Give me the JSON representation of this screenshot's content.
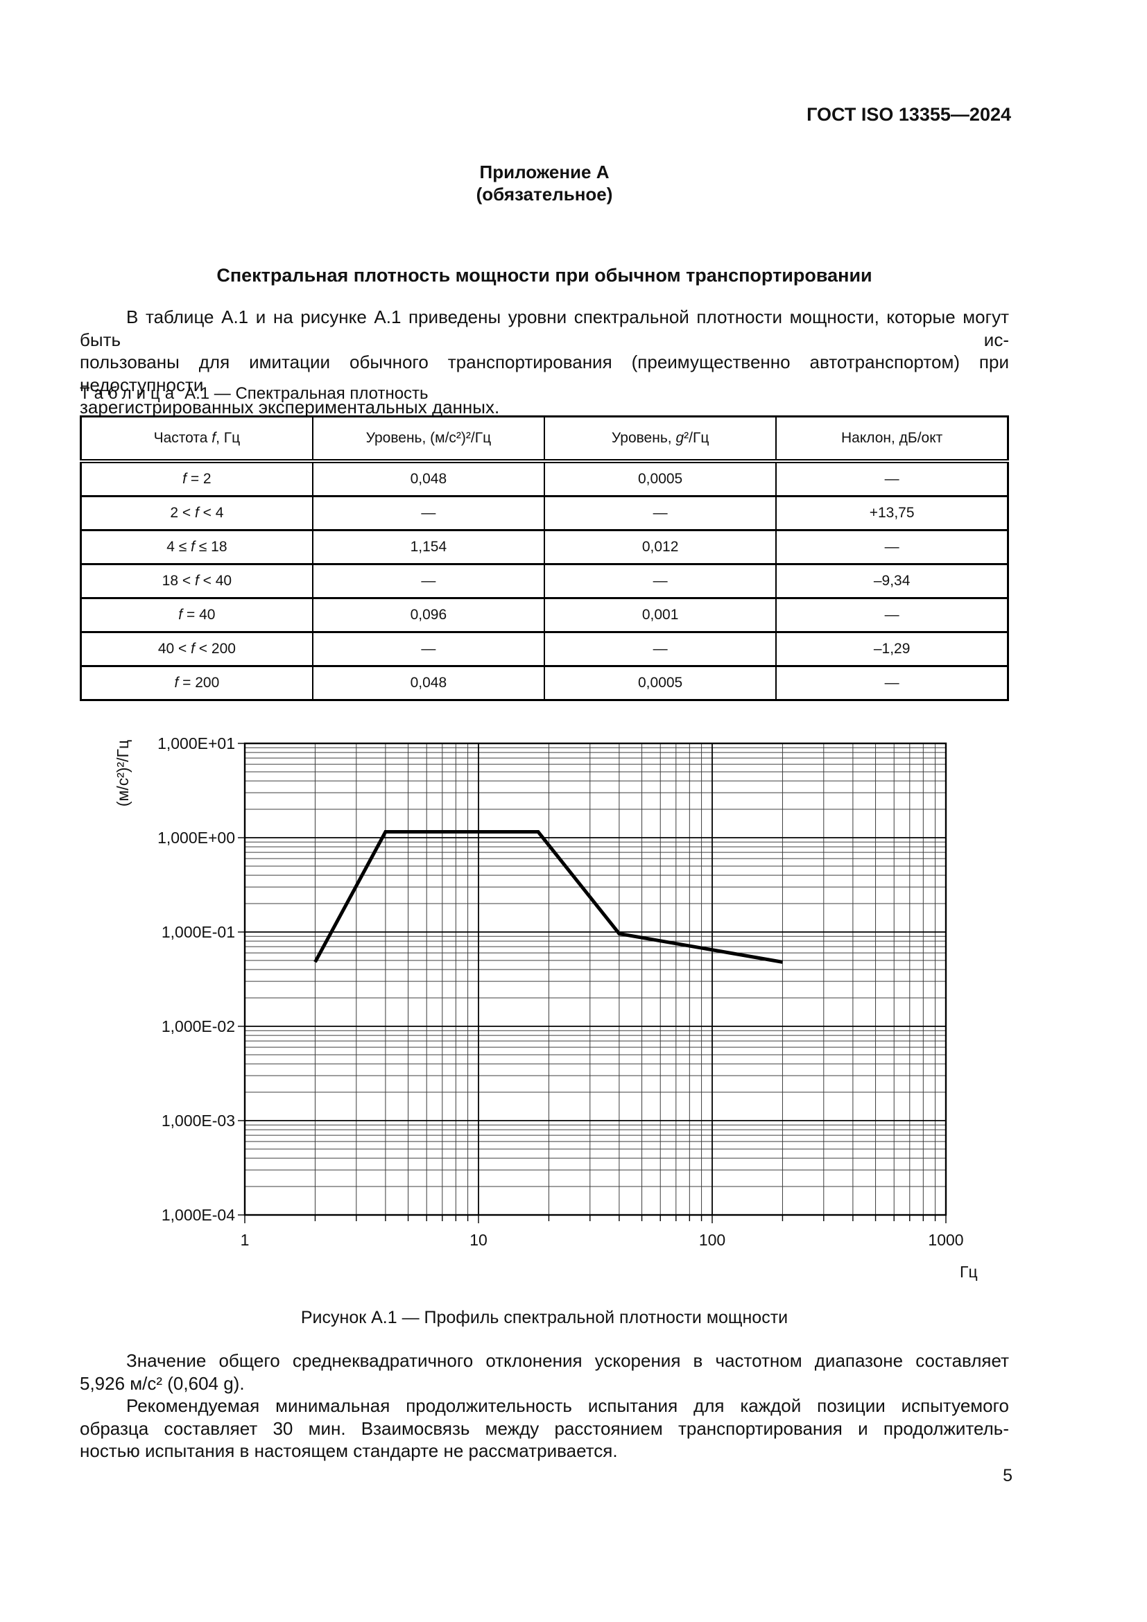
{
  "page": {
    "doc_code": "ГОСТ ISO 13355—2024",
    "page_number": "5"
  },
  "appendix": {
    "name": "Приложение А",
    "qualifier": "(обязательное)",
    "title": "Спектральная плотность мощности при обычном транспортировании"
  },
  "intro": {
    "lines": [
      "В таблице А.1 и на рисунке А.1 приведены уровни спектральной плотности мощности, которые могут быть ис-",
      "пользованы для имитации обычного транспортирования (преимущественно автотранспортом) при недоступности",
      "зарегистрированных экспериментальных данных."
    ]
  },
  "table": {
    "caption_label": "Таблица",
    "caption_rest": "А.1 — Спектральная плотность",
    "columns": [
      "Частота f, Гц",
      "Уровень, (м/с²)²/Гц",
      "Уровень, g²/Гц",
      "Наклон, дБ/окт"
    ],
    "rows": [
      [
        "f = 2",
        "0,048",
        "0,0005",
        "—"
      ],
      [
        "2 < f < 4",
        "—",
        "—",
        "+13,75"
      ],
      [
        "4 ≤ f ≤ 18",
        "1,154",
        "0,012",
        "—"
      ],
      [
        "18 < f < 40",
        "—",
        "—",
        "–9,34"
      ],
      [
        "f = 40",
        "0,096",
        "0,001",
        "—"
      ],
      [
        "40 < f < 200",
        "—",
        "—",
        "–1,29"
      ],
      [
        "f = 200",
        "0,048",
        "0,0005",
        "—"
      ]
    ]
  },
  "chart_data": {
    "type": "line",
    "title": "",
    "xlabel": "Гц",
    "ylabel": "(м/с²)²/Гц",
    "xscale": "log",
    "yscale": "log",
    "xlim": [
      1,
      1000
    ],
    "ylim": [
      0.0001,
      10
    ],
    "grid": "log major and minor gridlines, both axes",
    "legend": "none",
    "x_ticks": [
      {
        "label": "1",
        "value": 1
      },
      {
        "label": "10",
        "value": 10
      },
      {
        "label": "100",
        "value": 100
      },
      {
        "label": "1000",
        "value": 1000
      }
    ],
    "y_ticks": [
      {
        "label": "1,000E+01",
        "value": 10
      },
      {
        "label": "1,000E+00",
        "value": 1
      },
      {
        "label": "1,000E-01",
        "value": 0.1
      },
      {
        "label": "1,000E-02",
        "value": 0.01
      },
      {
        "label": "1,000E-03",
        "value": 0.001
      },
      {
        "label": "1,000E-04",
        "value": 0.0001
      }
    ],
    "series": [
      {
        "name": "Профиль спектральной плотности мощности",
        "points": [
          [
            2,
            0.048
          ],
          [
            4,
            1.154
          ],
          [
            18,
            1.154
          ],
          [
            40,
            0.096
          ],
          [
            200,
            0.048
          ]
        ]
      }
    ]
  },
  "figure": {
    "caption": "Рисунок А.1 — Профиль спектральной плотности мощности"
  },
  "body": {
    "para1_lines": [
      "Значение общего среднеквадратичного отклонения ускорения в частотном диапазоне составляет",
      "5,926 м/с² (0,604 g)."
    ],
    "para2_lines": [
      "Рекомендуемая минимальная продолжительность испытания для каждой позиции испытуемого",
      "образца составляет 30 мин. Взаимосвязь между расстоянием транспортирования и продолжитель-",
      "ностью испытания в настоящем стандарте не рассматривается."
    ]
  }
}
